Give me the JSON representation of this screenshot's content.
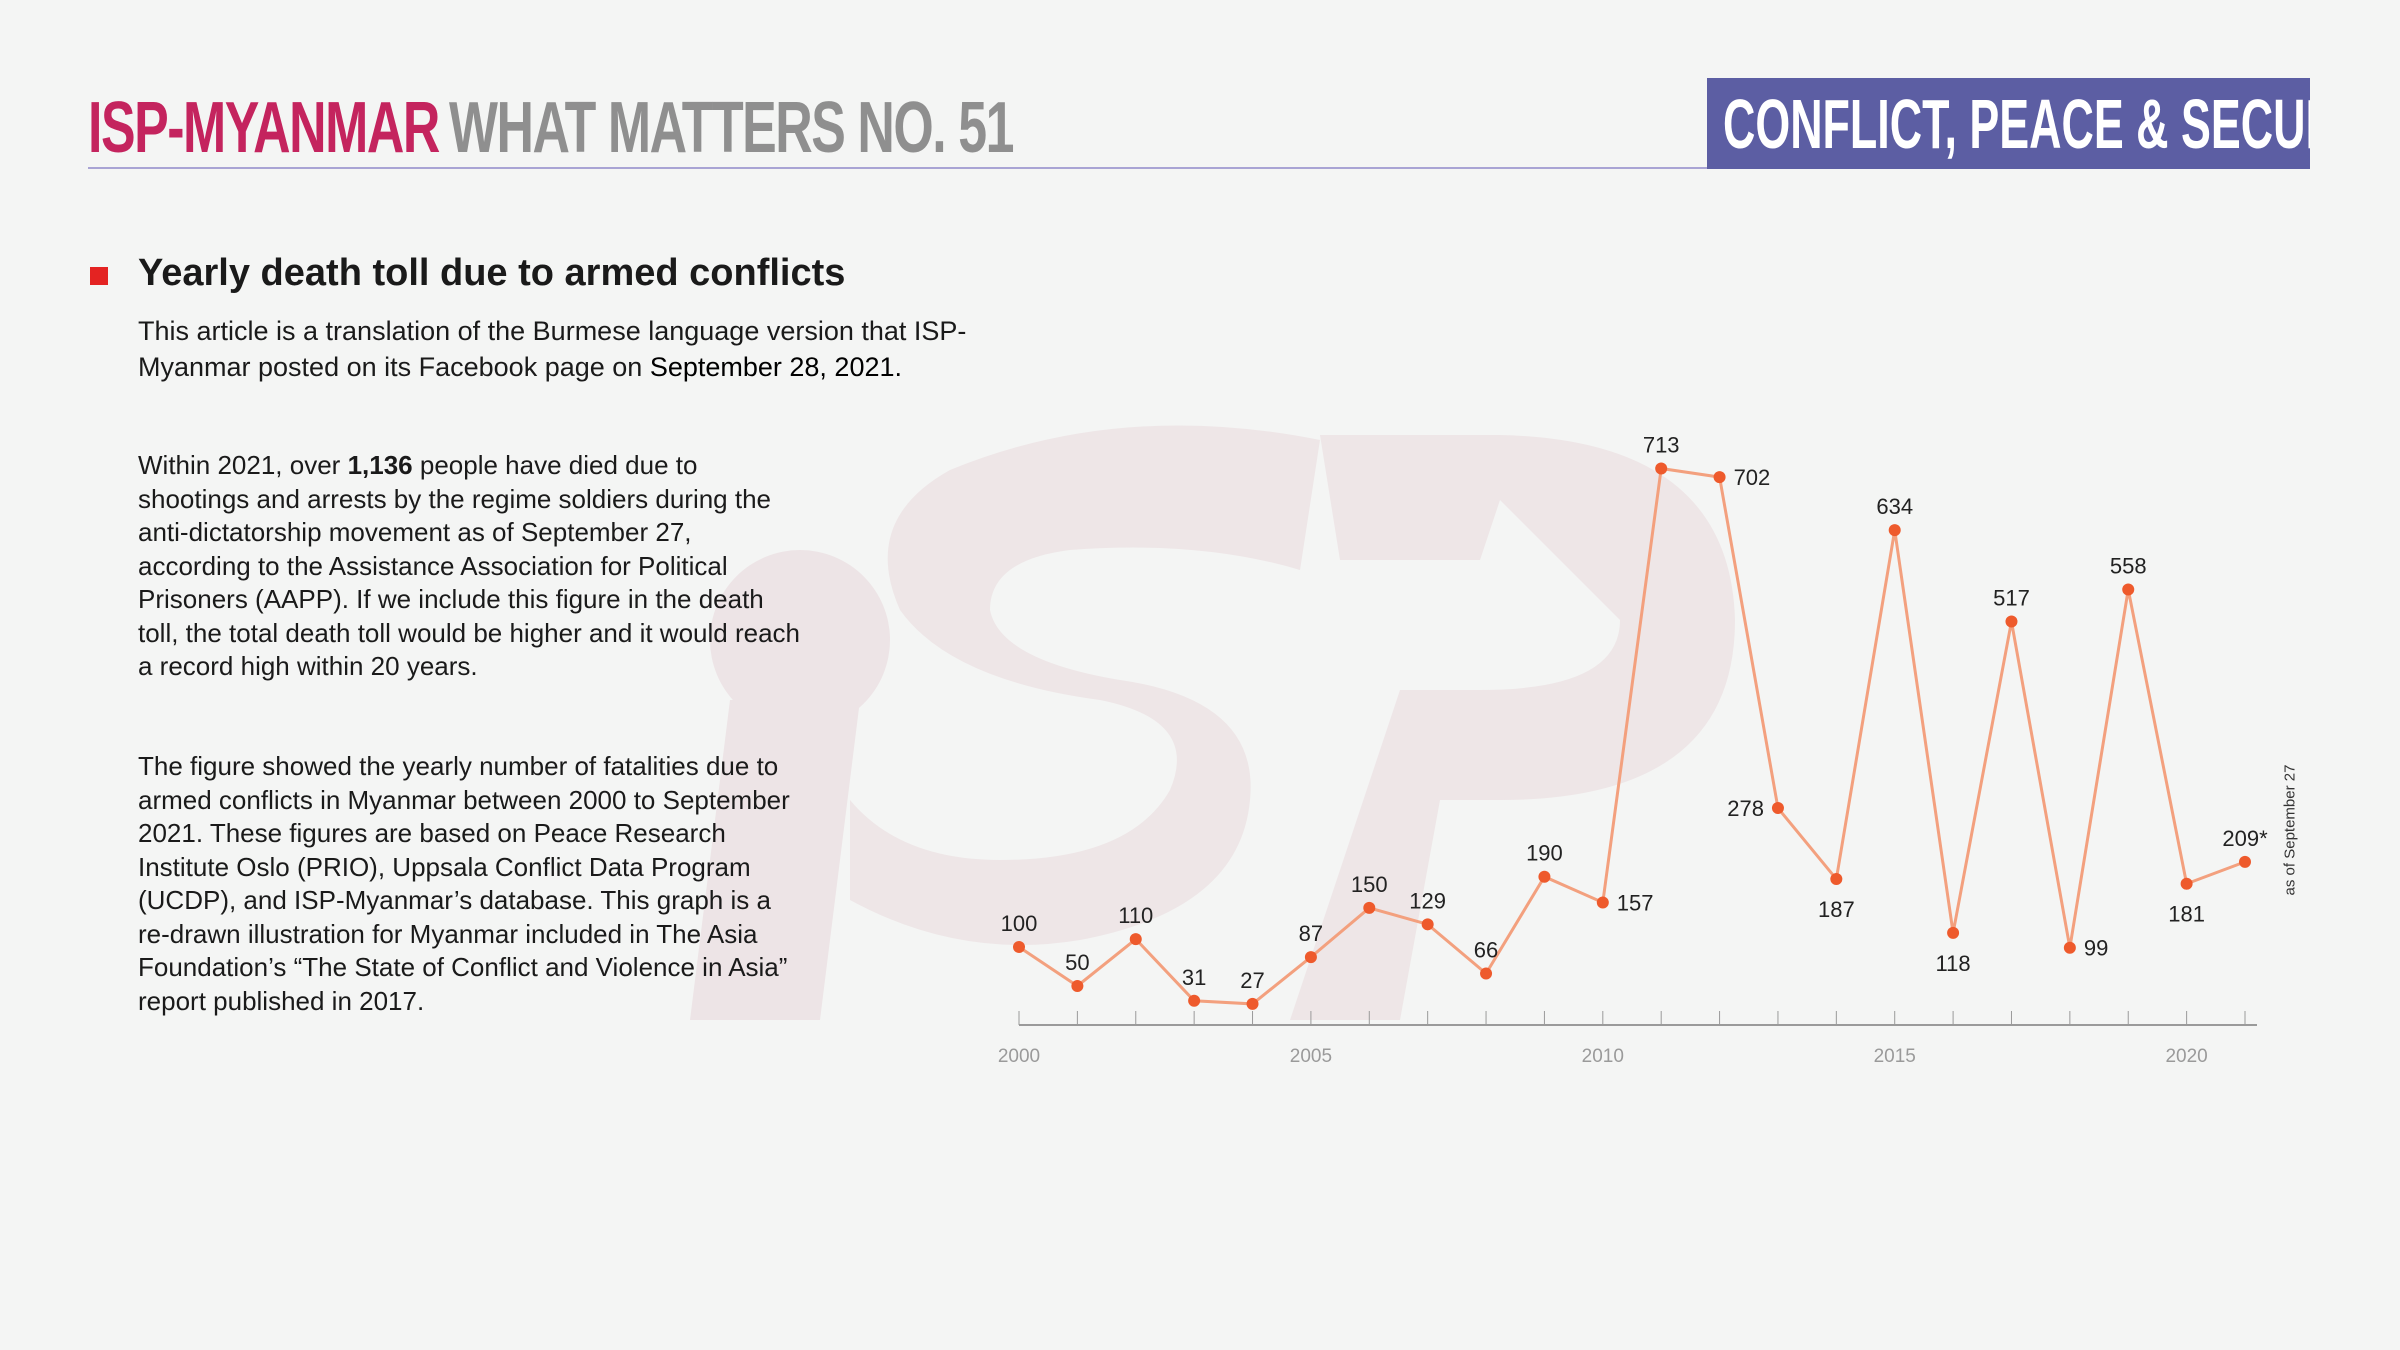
{
  "header": {
    "brand": "ISP-MYANMAR",
    "series": "WHAT MATTERS NO. 51",
    "category_badge": "CONFLICT, PEACE & SECURITY"
  },
  "watermark": {
    "logo_text": "iSP"
  },
  "article": {
    "title": "Yearly death toll due to armed conflicts",
    "subtitle_pre": "This article is a translation of the Burmese language version that ISP-Myanmar posted on its Facebook page on ",
    "subtitle_date": "September 28, 2021.",
    "para1_pre": "Within 2021, over ",
    "para1_bold": "1,136",
    "para1_post": " people have died due to shootings and arrests by the regime soldiers during the anti-dictatorship movement as of September 27, according to the Assistance Association for Political Prisoners (AAPP). If we include this figure in the death toll, the total death toll would be higher and it would reach a record high within 20 years.",
    "para2": "The figure showed the yearly number of fatalities due to armed conflicts in Myanmar between 2000 to September 2021. These figures are based on Peace Research Institute Oslo (PRIO), Uppsala Conflict Data Program (UCDP), and ISP-Myanmar’s database. This graph is a re-drawn illustration for Myanmar included in The Asia Foundation’s “The State of Conflict and Violence in Asia” report published in 2017."
  },
  "chart_data": {
    "type": "line",
    "title": "",
    "xlabel": "",
    "ylabel": "",
    "x": [
      2000,
      2001,
      2002,
      2003,
      2004,
      2005,
      2006,
      2007,
      2008,
      2009,
      2010,
      2011,
      2012,
      2013,
      2014,
      2015,
      2016,
      2017,
      2018,
      2019,
      2020,
      2021
    ],
    "values": [
      100,
      50,
      110,
      31,
      27,
      87,
      150,
      129,
      66,
      190,
      157,
      713,
      702,
      278,
      187,
      634,
      118,
      517,
      99,
      558,
      181,
      209
    ],
    "data_labels": [
      "100",
      "50",
      "110",
      "31",
      "27",
      "87",
      "150",
      "129",
      "66",
      "190",
      "157",
      "713",
      "702",
      "278",
      "187",
      "634",
      "118",
      "517",
      "99",
      "558",
      "181",
      "209*"
    ],
    "x_tick_labels": [
      "2000",
      "2005",
      "2010",
      "2015",
      "2020"
    ],
    "xlim": [
      2000,
      2021
    ],
    "ylim": [
      0,
      750
    ],
    "grid": false,
    "y_axis_shown": false,
    "annotation": "as of September 27",
    "colors": {
      "line": "#f3a07e",
      "marker": "#ee5a2c",
      "axis": "#9a9a9a"
    }
  }
}
